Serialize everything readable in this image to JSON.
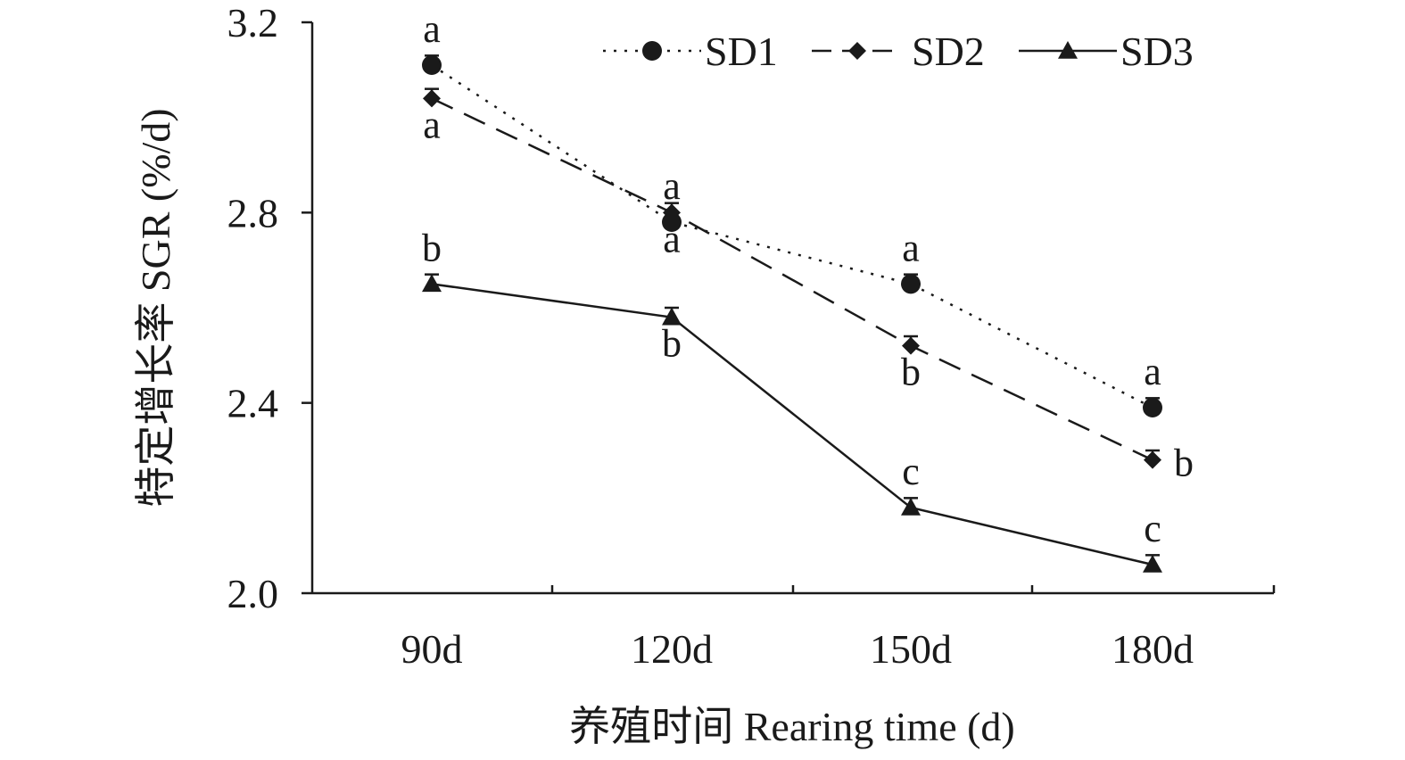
{
  "chart_data": {
    "type": "line",
    "categories": [
      "90d",
      "120d",
      "150d",
      "180d"
    ],
    "xlabel": "养殖时间 Rearing time (d)",
    "ylabel": "特定增长率 SGR (%/d)",
    "ylim": [
      2.0,
      3.2
    ],
    "yticks": [
      "2.0",
      "2.4",
      "2.8",
      "3.2"
    ],
    "grid": false,
    "legend_position": "top-right",
    "series": [
      {
        "name": "SD1",
        "values": [
          3.11,
          2.78,
          2.65,
          2.39
        ],
        "errors": [
          0.02,
          0.02,
          0.02,
          0.02
        ],
        "letters": [
          "a",
          "a",
          "a",
          "a"
        ],
        "letter_side": [
          "above",
          "above",
          "above",
          "above"
        ],
        "marker": "circle",
        "dash": "dotted",
        "color": "#1a1a1a"
      },
      {
        "name": "SD2",
        "values": [
          3.04,
          2.8,
          2.52,
          2.28
        ],
        "errors": [
          0.02,
          0.02,
          0.02,
          0.02
        ],
        "letters": [
          "a",
          "a",
          "b",
          "b"
        ],
        "letter_side": [
          "below",
          "below",
          "below",
          "right"
        ],
        "marker": "diamond",
        "dash": "dashed",
        "color": "#1a1a1a"
      },
      {
        "name": "SD3",
        "values": [
          2.65,
          2.58,
          2.18,
          2.06
        ],
        "errors": [
          0.02,
          0.02,
          0.02,
          0.02
        ],
        "letters": [
          "b",
          "b",
          "c",
          "c"
        ],
        "letter_side": [
          "above",
          "below",
          "above",
          "above"
        ],
        "marker": "triangle",
        "dash": "solid",
        "color": "#1a1a1a"
      }
    ]
  }
}
